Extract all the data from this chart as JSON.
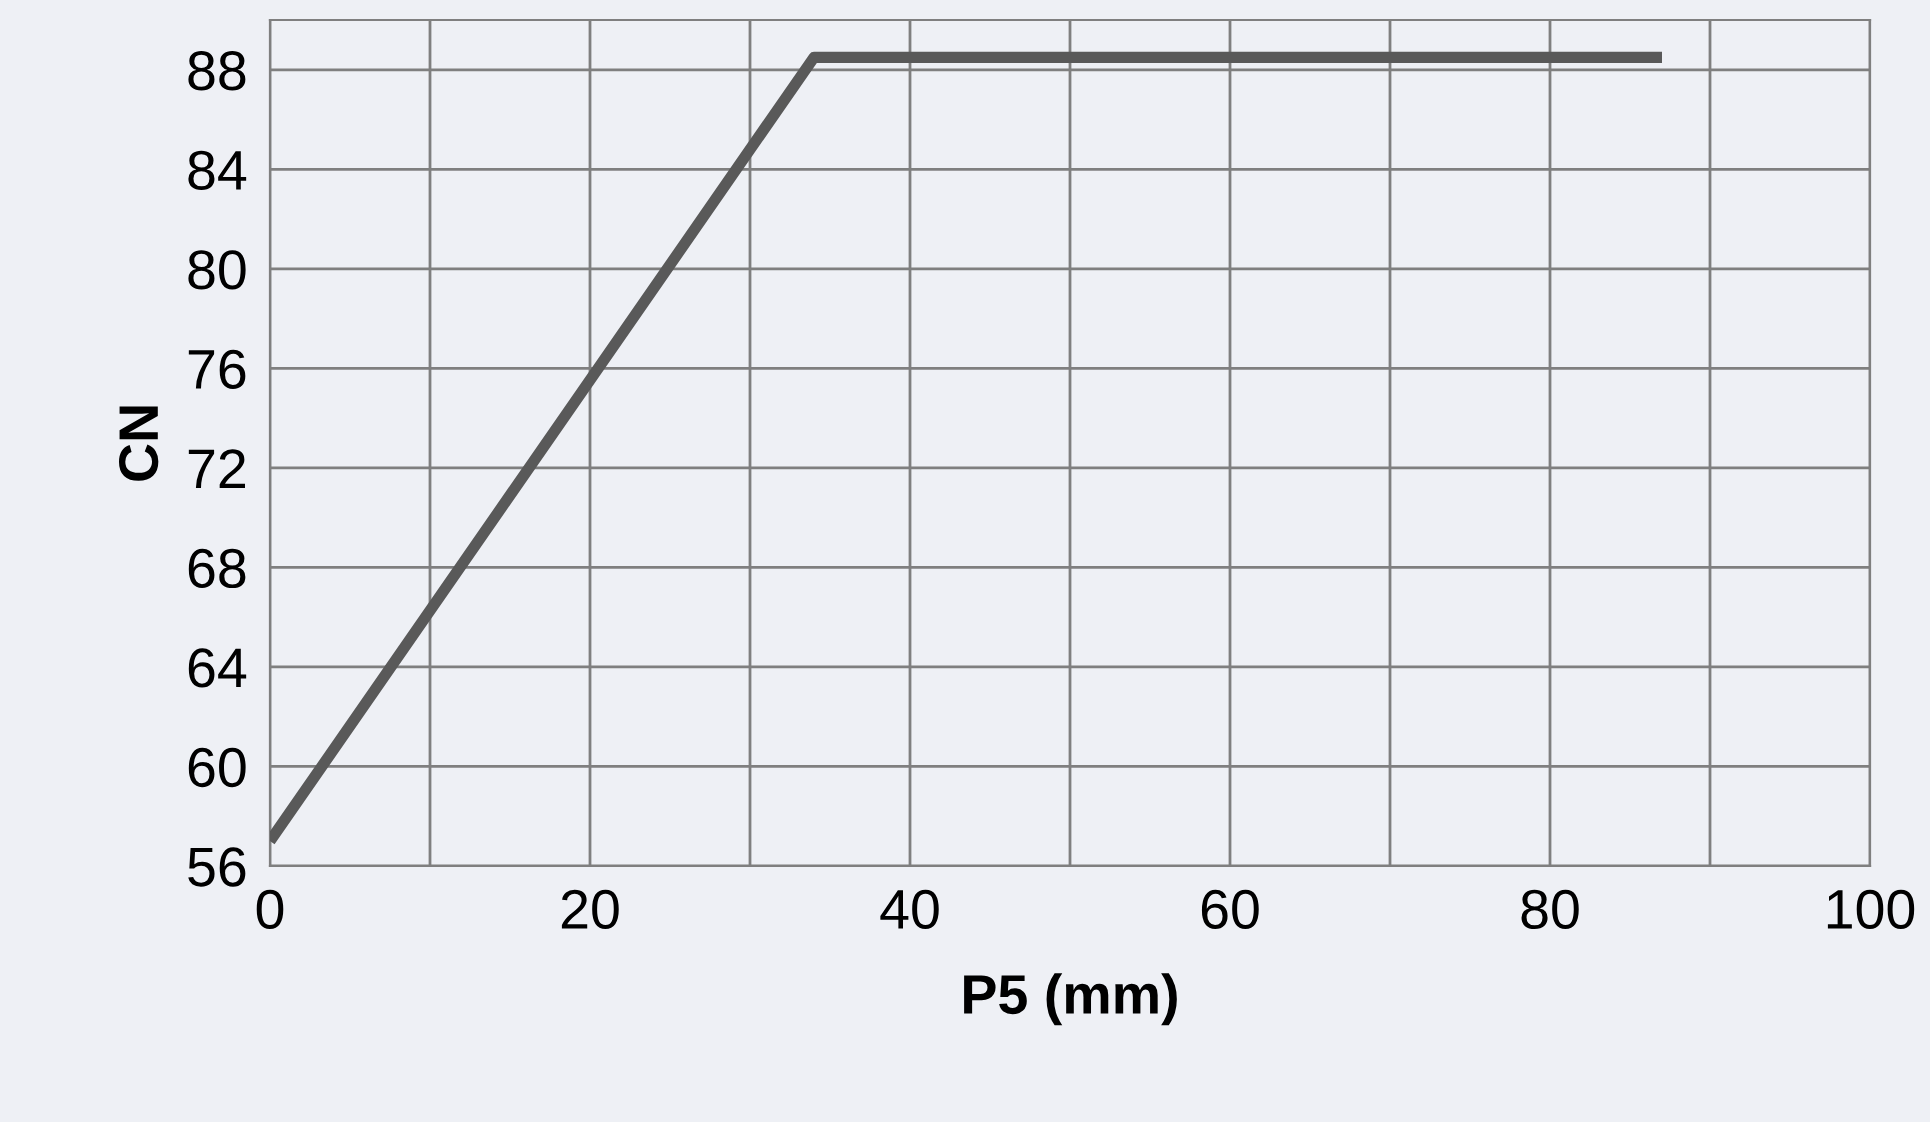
{
  "chart_data": {
    "type": "line",
    "xlabel": "P5 (mm)",
    "ylabel": "CN",
    "x": [
      0,
      34,
      87
    ],
    "series": [
      {
        "color": "#595959",
        "values": [
          57,
          88.5,
          88.5
        ]
      }
    ],
    "xlim": [
      0,
      100
    ],
    "ylim": [
      56,
      90
    ],
    "xticks": [
      0,
      {
        "value": 10,
        "label": null
      },
      20,
      {
        "value": 30,
        "label": null
      },
      40,
      {
        "value": 50,
        "label": null
      },
      60,
      {
        "value": 70,
        "label": null
      },
      80,
      {
        "value": 90,
        "label": null
      },
      100
    ],
    "yticks": [
      56,
      60,
      64,
      68,
      72,
      76,
      80,
      84,
      88
    ],
    "grid": true,
    "legend": false,
    "marker": "none",
    "line_style": "solid"
  }
}
